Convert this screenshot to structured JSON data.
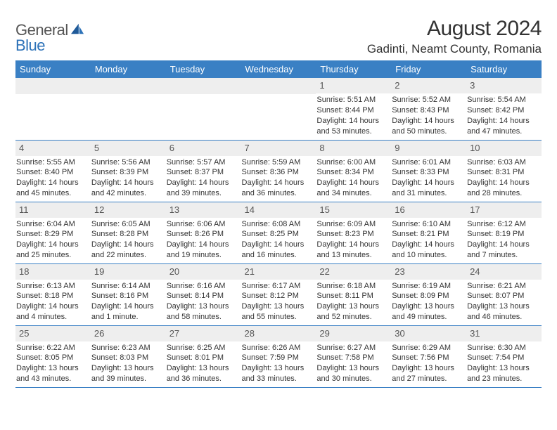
{
  "brand": {
    "general": "General",
    "blue": "Blue"
  },
  "title": "August 2024",
  "location": "Gadinti, Neamt County, Romania",
  "colors": {
    "header_bg": "#3a80c4",
    "header_text": "#ffffff",
    "daynum_bg": "#eeeeee",
    "border": "#3a80c4",
    "brand_blue": "#2d72b8",
    "text": "#333333"
  },
  "daysOfWeek": [
    "Sunday",
    "Monday",
    "Tuesday",
    "Wednesday",
    "Thursday",
    "Friday",
    "Saturday"
  ],
  "weeks": [
    [
      null,
      null,
      null,
      null,
      {
        "n": "1",
        "sr": "Sunrise: 5:51 AM",
        "ss": "Sunset: 8:44 PM",
        "dl": "Daylight: 14 hours and 53 minutes."
      },
      {
        "n": "2",
        "sr": "Sunrise: 5:52 AM",
        "ss": "Sunset: 8:43 PM",
        "dl": "Daylight: 14 hours and 50 minutes."
      },
      {
        "n": "3",
        "sr": "Sunrise: 5:54 AM",
        "ss": "Sunset: 8:42 PM",
        "dl": "Daylight: 14 hours and 47 minutes."
      }
    ],
    [
      {
        "n": "4",
        "sr": "Sunrise: 5:55 AM",
        "ss": "Sunset: 8:40 PM",
        "dl": "Daylight: 14 hours and 45 minutes."
      },
      {
        "n": "5",
        "sr": "Sunrise: 5:56 AM",
        "ss": "Sunset: 8:39 PM",
        "dl": "Daylight: 14 hours and 42 minutes."
      },
      {
        "n": "6",
        "sr": "Sunrise: 5:57 AM",
        "ss": "Sunset: 8:37 PM",
        "dl": "Daylight: 14 hours and 39 minutes."
      },
      {
        "n": "7",
        "sr": "Sunrise: 5:59 AM",
        "ss": "Sunset: 8:36 PM",
        "dl": "Daylight: 14 hours and 36 minutes."
      },
      {
        "n": "8",
        "sr": "Sunrise: 6:00 AM",
        "ss": "Sunset: 8:34 PM",
        "dl": "Daylight: 14 hours and 34 minutes."
      },
      {
        "n": "9",
        "sr": "Sunrise: 6:01 AM",
        "ss": "Sunset: 8:33 PM",
        "dl": "Daylight: 14 hours and 31 minutes."
      },
      {
        "n": "10",
        "sr": "Sunrise: 6:03 AM",
        "ss": "Sunset: 8:31 PM",
        "dl": "Daylight: 14 hours and 28 minutes."
      }
    ],
    [
      {
        "n": "11",
        "sr": "Sunrise: 6:04 AM",
        "ss": "Sunset: 8:29 PM",
        "dl": "Daylight: 14 hours and 25 minutes."
      },
      {
        "n": "12",
        "sr": "Sunrise: 6:05 AM",
        "ss": "Sunset: 8:28 PM",
        "dl": "Daylight: 14 hours and 22 minutes."
      },
      {
        "n": "13",
        "sr": "Sunrise: 6:06 AM",
        "ss": "Sunset: 8:26 PM",
        "dl": "Daylight: 14 hours and 19 minutes."
      },
      {
        "n": "14",
        "sr": "Sunrise: 6:08 AM",
        "ss": "Sunset: 8:25 PM",
        "dl": "Daylight: 14 hours and 16 minutes."
      },
      {
        "n": "15",
        "sr": "Sunrise: 6:09 AM",
        "ss": "Sunset: 8:23 PM",
        "dl": "Daylight: 14 hours and 13 minutes."
      },
      {
        "n": "16",
        "sr": "Sunrise: 6:10 AM",
        "ss": "Sunset: 8:21 PM",
        "dl": "Daylight: 14 hours and 10 minutes."
      },
      {
        "n": "17",
        "sr": "Sunrise: 6:12 AM",
        "ss": "Sunset: 8:19 PM",
        "dl": "Daylight: 14 hours and 7 minutes."
      }
    ],
    [
      {
        "n": "18",
        "sr": "Sunrise: 6:13 AM",
        "ss": "Sunset: 8:18 PM",
        "dl": "Daylight: 14 hours and 4 minutes."
      },
      {
        "n": "19",
        "sr": "Sunrise: 6:14 AM",
        "ss": "Sunset: 8:16 PM",
        "dl": "Daylight: 14 hours and 1 minute."
      },
      {
        "n": "20",
        "sr": "Sunrise: 6:16 AM",
        "ss": "Sunset: 8:14 PM",
        "dl": "Daylight: 13 hours and 58 minutes."
      },
      {
        "n": "21",
        "sr": "Sunrise: 6:17 AM",
        "ss": "Sunset: 8:12 PM",
        "dl": "Daylight: 13 hours and 55 minutes."
      },
      {
        "n": "22",
        "sr": "Sunrise: 6:18 AM",
        "ss": "Sunset: 8:11 PM",
        "dl": "Daylight: 13 hours and 52 minutes."
      },
      {
        "n": "23",
        "sr": "Sunrise: 6:19 AM",
        "ss": "Sunset: 8:09 PM",
        "dl": "Daylight: 13 hours and 49 minutes."
      },
      {
        "n": "24",
        "sr": "Sunrise: 6:21 AM",
        "ss": "Sunset: 8:07 PM",
        "dl": "Daylight: 13 hours and 46 minutes."
      }
    ],
    [
      {
        "n": "25",
        "sr": "Sunrise: 6:22 AM",
        "ss": "Sunset: 8:05 PM",
        "dl": "Daylight: 13 hours and 43 minutes."
      },
      {
        "n": "26",
        "sr": "Sunrise: 6:23 AM",
        "ss": "Sunset: 8:03 PM",
        "dl": "Daylight: 13 hours and 39 minutes."
      },
      {
        "n": "27",
        "sr": "Sunrise: 6:25 AM",
        "ss": "Sunset: 8:01 PM",
        "dl": "Daylight: 13 hours and 36 minutes."
      },
      {
        "n": "28",
        "sr": "Sunrise: 6:26 AM",
        "ss": "Sunset: 7:59 PM",
        "dl": "Daylight: 13 hours and 33 minutes."
      },
      {
        "n": "29",
        "sr": "Sunrise: 6:27 AM",
        "ss": "Sunset: 7:58 PM",
        "dl": "Daylight: 13 hours and 30 minutes."
      },
      {
        "n": "30",
        "sr": "Sunrise: 6:29 AM",
        "ss": "Sunset: 7:56 PM",
        "dl": "Daylight: 13 hours and 27 minutes."
      },
      {
        "n": "31",
        "sr": "Sunrise: 6:30 AM",
        "ss": "Sunset: 7:54 PM",
        "dl": "Daylight: 13 hours and 23 minutes."
      }
    ]
  ]
}
